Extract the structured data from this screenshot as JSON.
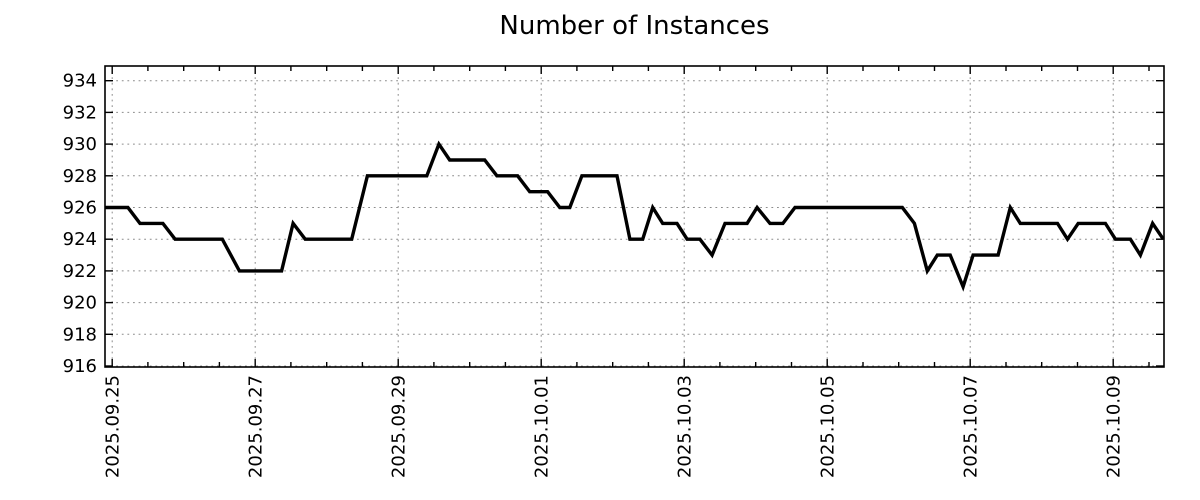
{
  "chart_data": {
    "type": "line",
    "title": "Number of Instances",
    "xlabel": "",
    "ylabel": "",
    "grid": true,
    "legend_position": "none",
    "bg_color": "#ffffff",
    "line_color": "#000000",
    "grid_color": "#8c8c8c",
    "x_unit": "days_since_first_tick",
    "xlim": [
      -0.1,
      14.71
    ],
    "ylim": [
      915.94,
      934.93
    ],
    "x_minor_step": 0.5,
    "x_ticks": {
      "positions": [
        0,
        2,
        4,
        6,
        8,
        10,
        12,
        14
      ],
      "labels": [
        "2025.09.25",
        "2025.09.27",
        "2025.09.29",
        "2025.10.01",
        "2025.10.03",
        "2025.10.05",
        "2025.10.07",
        "2025.10.09"
      ]
    },
    "y_ticks": [
      916,
      918,
      920,
      922,
      924,
      926,
      928,
      930,
      932,
      934
    ],
    "series": [
      {
        "name": "instances",
        "points": [
          [
            -0.1,
            926
          ],
          [
            0.22,
            926
          ],
          [
            0.39,
            925
          ],
          [
            0.71,
            925
          ],
          [
            0.88,
            924
          ],
          [
            1.54,
            924
          ],
          [
            1.78,
            922
          ],
          [
            2.37,
            922
          ],
          [
            2.53,
            925
          ],
          [
            2.7,
            924
          ],
          [
            3.35,
            924
          ],
          [
            3.57,
            928
          ],
          [
            4.4,
            928
          ],
          [
            4.57,
            930
          ],
          [
            4.72,
            929
          ],
          [
            5.21,
            929
          ],
          [
            5.38,
            928
          ],
          [
            5.67,
            928
          ],
          [
            5.84,
            927
          ],
          [
            6.09,
            927
          ],
          [
            6.26,
            926
          ],
          [
            6.4,
            926
          ],
          [
            6.57,
            928
          ],
          [
            7.06,
            928
          ],
          [
            7.24,
            924
          ],
          [
            7.42,
            924
          ],
          [
            7.56,
            926
          ],
          [
            7.7,
            925
          ],
          [
            7.9,
            925
          ],
          [
            8.04,
            924
          ],
          [
            8.22,
            924
          ],
          [
            8.39,
            923
          ],
          [
            8.57,
            925
          ],
          [
            8.88,
            925
          ],
          [
            9.02,
            926
          ],
          [
            9.2,
            925
          ],
          [
            9.38,
            925
          ],
          [
            9.55,
            926
          ],
          [
            11.05,
            926
          ],
          [
            11.22,
            925
          ],
          [
            11.4,
            922
          ],
          [
            11.54,
            923
          ],
          [
            11.72,
            923
          ],
          [
            11.9,
            921
          ],
          [
            12.04,
            923
          ],
          [
            12.39,
            923
          ],
          [
            12.56,
            926
          ],
          [
            12.7,
            925
          ],
          [
            13.22,
            925
          ],
          [
            13.36,
            924
          ],
          [
            13.51,
            925
          ],
          [
            13.89,
            925
          ],
          [
            14.03,
            924
          ],
          [
            14.24,
            924
          ],
          [
            14.38,
            923
          ],
          [
            14.55,
            925
          ],
          [
            14.7,
            924
          ]
        ]
      }
    ]
  }
}
